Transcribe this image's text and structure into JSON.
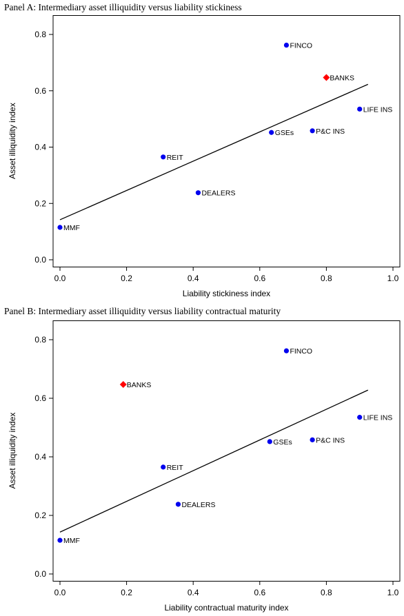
{
  "chart_data": [
    {
      "type": "scatter",
      "title": "Panel A: Intermediary asset illiquidity versus liability stickiness",
      "xlabel": "Liability stickiness index",
      "ylabel": "Asset illiquidity index",
      "xlim": [
        0,
        1
      ],
      "ylim": [
        0,
        0.8
      ],
      "xticks": [
        "0.0",
        "0.2",
        "0.4",
        "0.6",
        "0.8",
        "1.0"
      ],
      "yticks": [
        "0.0",
        "0.2",
        "0.4",
        "0.6",
        "0.8"
      ],
      "grid": false,
      "points": [
        {
          "label": "MMF",
          "x": 0.0,
          "y": 0.115,
          "highlight": false
        },
        {
          "label": "REIT",
          "x": 0.31,
          "y": 0.365,
          "highlight": false
        },
        {
          "label": "DEALERS",
          "x": 0.415,
          "y": 0.238,
          "highlight": false
        },
        {
          "label": "GSEs",
          "x": 0.635,
          "y": 0.452,
          "highlight": false
        },
        {
          "label": "FINCO",
          "x": 0.68,
          "y": 0.762,
          "highlight": false
        },
        {
          "label": "P&C INS",
          "x": 0.758,
          "y": 0.458,
          "highlight": false
        },
        {
          "label": "BANKS",
          "x": 0.8,
          "y": 0.647,
          "highlight": true
        },
        {
          "label": "LIFE INS",
          "x": 0.9,
          "y": 0.535,
          "highlight": false
        }
      ],
      "fit_line": {
        "x": [
          0.0,
          0.925
        ],
        "y": [
          0.142,
          0.623
        ]
      },
      "colors": {
        "point": "#0000ee",
        "highlight": "#ff0000",
        "line": "#000000"
      }
    },
    {
      "type": "scatter",
      "title": "Panel B: Intermediary asset illiquidity versus liability contractual maturity",
      "xlabel": "Liability contractual maturity index",
      "ylabel": "Asset illiquidity index",
      "xlim": [
        0,
        1
      ],
      "ylim": [
        0,
        0.8
      ],
      "xticks": [
        "0.0",
        "0.2",
        "0.4",
        "0.6",
        "0.8",
        "1.0"
      ],
      "yticks": [
        "0.0",
        "0.2",
        "0.4",
        "0.6",
        "0.8"
      ],
      "grid": false,
      "points": [
        {
          "label": "MMF",
          "x": 0.0,
          "y": 0.115,
          "highlight": false
        },
        {
          "label": "BANKS",
          "x": 0.19,
          "y": 0.647,
          "highlight": true
        },
        {
          "label": "REIT",
          "x": 0.31,
          "y": 0.365,
          "highlight": false
        },
        {
          "label": "DEALERS",
          "x": 0.355,
          "y": 0.238,
          "highlight": false
        },
        {
          "label": "GSEs",
          "x": 0.63,
          "y": 0.452,
          "highlight": false
        },
        {
          "label": "FINCO",
          "x": 0.68,
          "y": 0.762,
          "highlight": false
        },
        {
          "label": "P&C INS",
          "x": 0.758,
          "y": 0.458,
          "highlight": false
        },
        {
          "label": "LIFE INS",
          "x": 0.9,
          "y": 0.535,
          "highlight": false
        }
      ],
      "fit_line": {
        "x": [
          0.0,
          0.925
        ],
        "y": [
          0.143,
          0.628
        ]
      },
      "colors": {
        "point": "#0000ee",
        "highlight": "#ff0000",
        "line": "#000000"
      }
    }
  ]
}
